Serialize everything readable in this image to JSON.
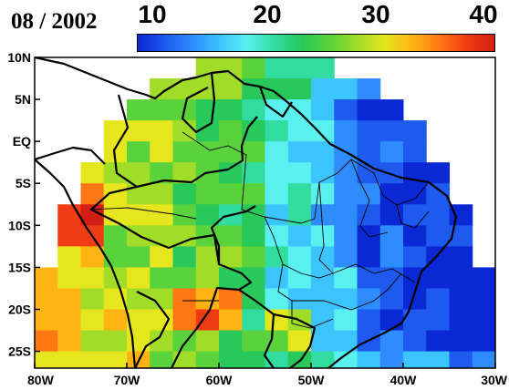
{
  "title": {
    "date": "08 / 2002"
  },
  "colorbar": {
    "ticks": [
      "10",
      "20",
      "30",
      "40"
    ],
    "min": 10,
    "max": 40,
    "colors": [
      "#0a28d4",
      "#1e5aee",
      "#2e8cff",
      "#3cc4ff",
      "#5af0f0",
      "#32dca0",
      "#28c85a",
      "#5ad23c",
      "#a0dc28",
      "#e6e61e",
      "#ffb414",
      "#ff7814",
      "#f03c14",
      "#d21e14"
    ]
  },
  "axes": {
    "lat_labels": [
      "10N",
      "5N",
      "EQ",
      "5S",
      "10S",
      "15S",
      "20S",
      "25S"
    ],
    "lon_labels": [
      "80W",
      "70W",
      "60W",
      "50W",
      "40W",
      "30W"
    ]
  },
  "field": {
    "lon_range": [
      -80,
      -30
    ],
    "lat_range": [
      -27,
      10
    ],
    "grid": 2.5,
    "values_note_free": true
  }
}
